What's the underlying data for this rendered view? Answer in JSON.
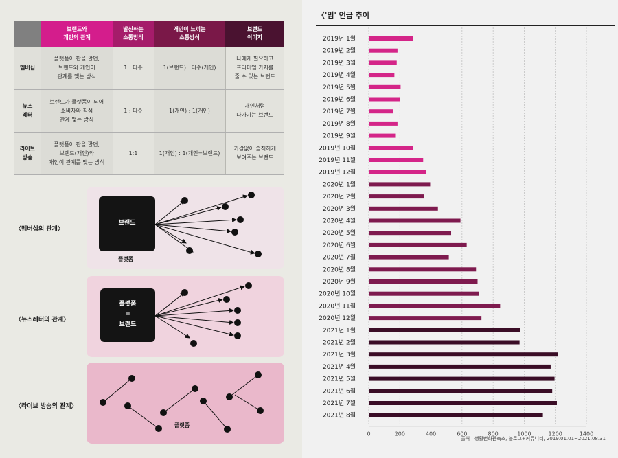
{
  "table": {
    "headers": [
      "브랜드와\n개인의 관계",
      "발신하는\n소통방식",
      "개인이 느끼는\n소통방식",
      "브랜드\n이미지"
    ],
    "rows": [
      {
        "label": "멤버십",
        "cells": [
          "플랫폼이 판을 깔면,\n브랜드와 개인이\n관계를 맺는 방식",
          "1 : 다수",
          "1(브랜드) : 다수(개인)",
          "나에게 필요하고\n프리미엄 가치를\n줄 수 있는 브랜드"
        ]
      },
      {
        "label": "뉴스\n레터",
        "cells": [
          "브랜드가 플랫폼이 되어\n소비자와 직접\n관계 맺는 방식",
          "1 : 다수",
          "1(개인) : 1(개인)",
          "개인처럼\n다가가는 브랜드"
        ]
      },
      {
        "label": "라이브\n방송",
        "cells": [
          "플랫폼이 판을 깔면,\n브랜드(개인)와\n개인이 관계를 맺는 방식",
          "1:1",
          "1(개인) : 1(개인=브랜드)",
          "가감없이 솔직하게\n보여주는 브랜드"
        ]
      }
    ]
  },
  "diagrams": {
    "membership": {
      "label": "〈멤버십의 관계〉",
      "box_text": "브랜드",
      "caption": "플랫폼"
    },
    "newsletter": {
      "label": "〈뉴스레터의 관계〉",
      "box_line1": "플랫폼",
      "box_line2": "=",
      "box_line3": "브랜드"
    },
    "live": {
      "label": "〈라이브 방송의 관계〉",
      "caption": "플랫폼"
    }
  },
  "chart": {
    "title": "〈'밈' 언급 추이",
    "source": "출처 | 생활변화관측소, 블로그+커뮤니티, 2019.01.01~2021.08.31"
  },
  "chart_data": {
    "type": "bar",
    "orientation": "horizontal",
    "title": "〈'밈' 언급 추이",
    "categories": [
      "2019년 1월",
      "2019년 2월",
      "2019년 3월",
      "2019년 4월",
      "2019년 5월",
      "2019년 6월",
      "2019년 7월",
      "2019년 8월",
      "2019년 9월",
      "2019년 10월",
      "2019년 11월",
      "2019년 12월",
      "2020년 1월",
      "2020년 2월",
      "2020년 3월",
      "2020년 4월",
      "2020년 5월",
      "2020년 6월",
      "2020년 7월",
      "2020년 8월",
      "2020년 9월",
      "2020년 10월",
      "2020년 11월",
      "2020년 12월",
      "2021년 1월",
      "2021년 2월",
      "2021년 3월",
      "2021년 4월",
      "2021년 5월",
      "2021년 6월",
      "2021년 7월",
      "2021년 8월"
    ],
    "values": [
      285,
      185,
      180,
      165,
      205,
      200,
      155,
      185,
      170,
      285,
      350,
      370,
      395,
      355,
      445,
      590,
      530,
      630,
      515,
      690,
      700,
      710,
      845,
      725,
      975,
      970,
      1215,
      1170,
      1195,
      1180,
      1210,
      1120
    ],
    "xlim": [
      0,
      1400
    ],
    "xticks": [
      0,
      200,
      400,
      600,
      800,
      1000,
      1200,
      1400
    ],
    "tick_labels": [
      "0",
      "200",
      "400",
      "600",
      "800",
      "1000",
      "1200",
      "1400"
    ],
    "colors": {
      "2019": "#d42588",
      "2020": "#7e1a4e",
      "2021": "#3a0d26"
    },
    "grid": true
  }
}
